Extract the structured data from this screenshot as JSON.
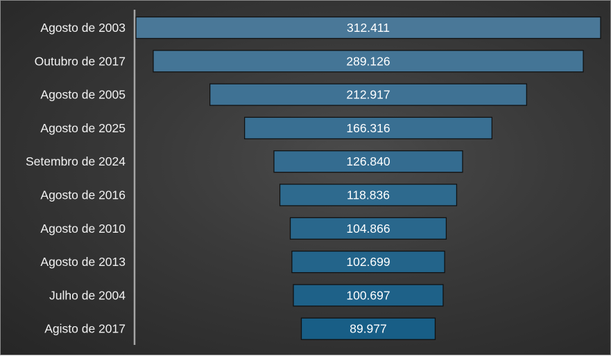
{
  "chart_data": {
    "type": "funnel",
    "categories": [
      "Agosto de 2003",
      "Outubro de 2017",
      "Agosto de 2005",
      "Agosto de 2025",
      "Setembro de 2024",
      "Agosto de 2016",
      "Agosto de 2010",
      "Agosto de 2013",
      "Julho de 2004",
      "Agisto de 2017"
    ],
    "values": [
      312411,
      289126,
      212917,
      166316,
      126840,
      118836,
      104866,
      102699,
      100697,
      89977
    ],
    "labels": [
      "312.411",
      "289.126",
      "212.917",
      "166.316",
      "126.840",
      "118.836",
      "104.866",
      "102.699",
      "100.697",
      "89.977"
    ],
    "colors": {
      "bar_top": "#4a7898",
      "bar_bottom": "#185e86",
      "bar_border": "#111111",
      "text": "#ffffff",
      "axis": "#a6a6a6"
    }
  }
}
